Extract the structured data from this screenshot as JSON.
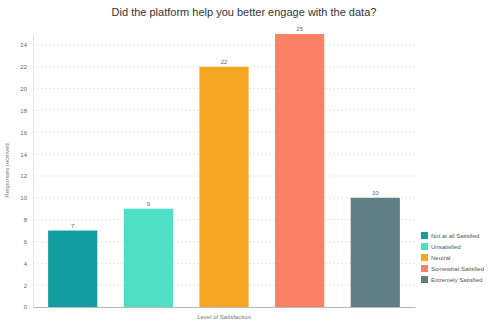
{
  "chart_data": {
    "type": "bar",
    "title": "Did the platform help you better engage with the data?",
    "x_label": "Level of Satisfaction",
    "y_label": "Responses received",
    "categories": [
      "Not at all Satisfied",
      "Unsatisfied",
      "Neutral",
      "Somewhat Satisfied",
      "Extremely Satisfied"
    ],
    "values": [
      7,
      9,
      22,
      25,
      10
    ],
    "colors": [
      "#109ea0",
      "#4ee0c4",
      "#f5a623",
      "#fa8163",
      "#5f7f82"
    ],
    "ylim": [
      0,
      25
    ],
    "yticks": [
      0,
      2,
      4,
      6,
      8,
      10,
      12,
      14,
      16,
      18,
      20,
      22,
      24
    ],
    "grid": true,
    "legend": "right",
    "data_labels": true,
    "tick_labels": "y"
  }
}
